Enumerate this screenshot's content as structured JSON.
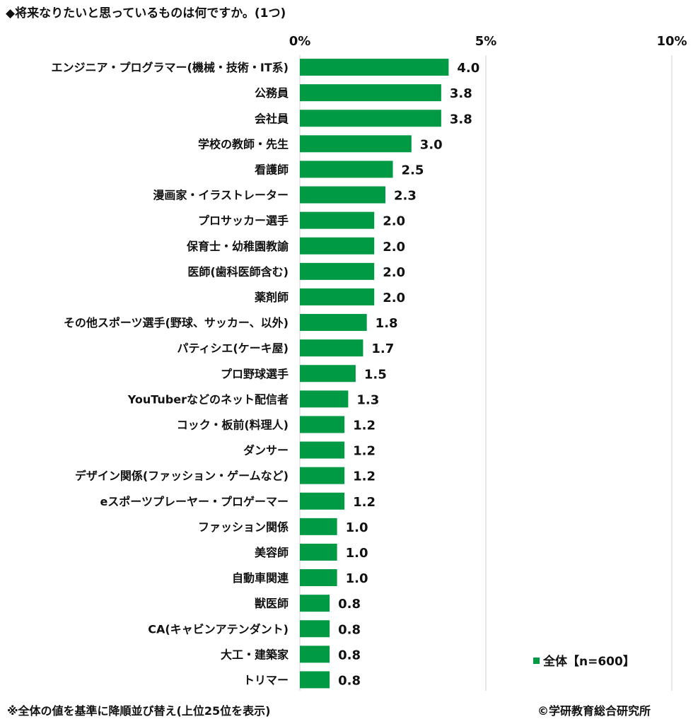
{
  "title": "◆将来なりたいと思っているものは何ですか。(1つ)",
  "footnote": "※全体の値を基準に降順並び替え(上位25位を表示)",
  "copyright": "©学研教育総合研究所",
  "colors": {
    "bar": "#009a44",
    "grid": "#d0d0d0"
  },
  "chart_data": {
    "type": "bar",
    "orientation": "horizontal",
    "xlim": [
      0,
      10
    ],
    "x_ticks": [
      0,
      5,
      10
    ],
    "x_tick_labels": [
      "0%",
      "5%",
      "10%"
    ],
    "grid": true,
    "legend_position": "bottom-right",
    "categories": [
      "エンジニア・プログラマー(機械・技術・IT系)",
      "公務員",
      "会社員",
      "学校の教師・先生",
      "看護師",
      "漫画家・イラストレーター",
      "プロサッカー選手",
      "保育士・幼稚園教諭",
      "医師(歯科医師含む)",
      "薬剤師",
      "その他スポーツ選手(野球、サッカー、以外)",
      "パティシエ(ケーキ屋)",
      "プロ野球選手",
      "YouTuberなどのネット配信者",
      "コック・板前(料理人)",
      "ダンサー",
      "デザイン関係(ファッション・ゲームなど)",
      "eスポーツプレーヤー・プロゲーマー",
      "ファッション関係",
      "美容師",
      "自動車関連",
      "獣医師",
      "CA(キャビンアテンダント)",
      "大工・建築家",
      "トリマー"
    ],
    "series": [
      {
        "name": "全体【n=600】",
        "values": [
          4.0,
          3.8,
          3.8,
          3.0,
          2.5,
          2.3,
          2.0,
          2.0,
          2.0,
          2.0,
          1.8,
          1.7,
          1.5,
          1.3,
          1.2,
          1.2,
          1.2,
          1.2,
          1.0,
          1.0,
          1.0,
          0.8,
          0.8,
          0.8,
          0.8
        ]
      }
    ]
  }
}
